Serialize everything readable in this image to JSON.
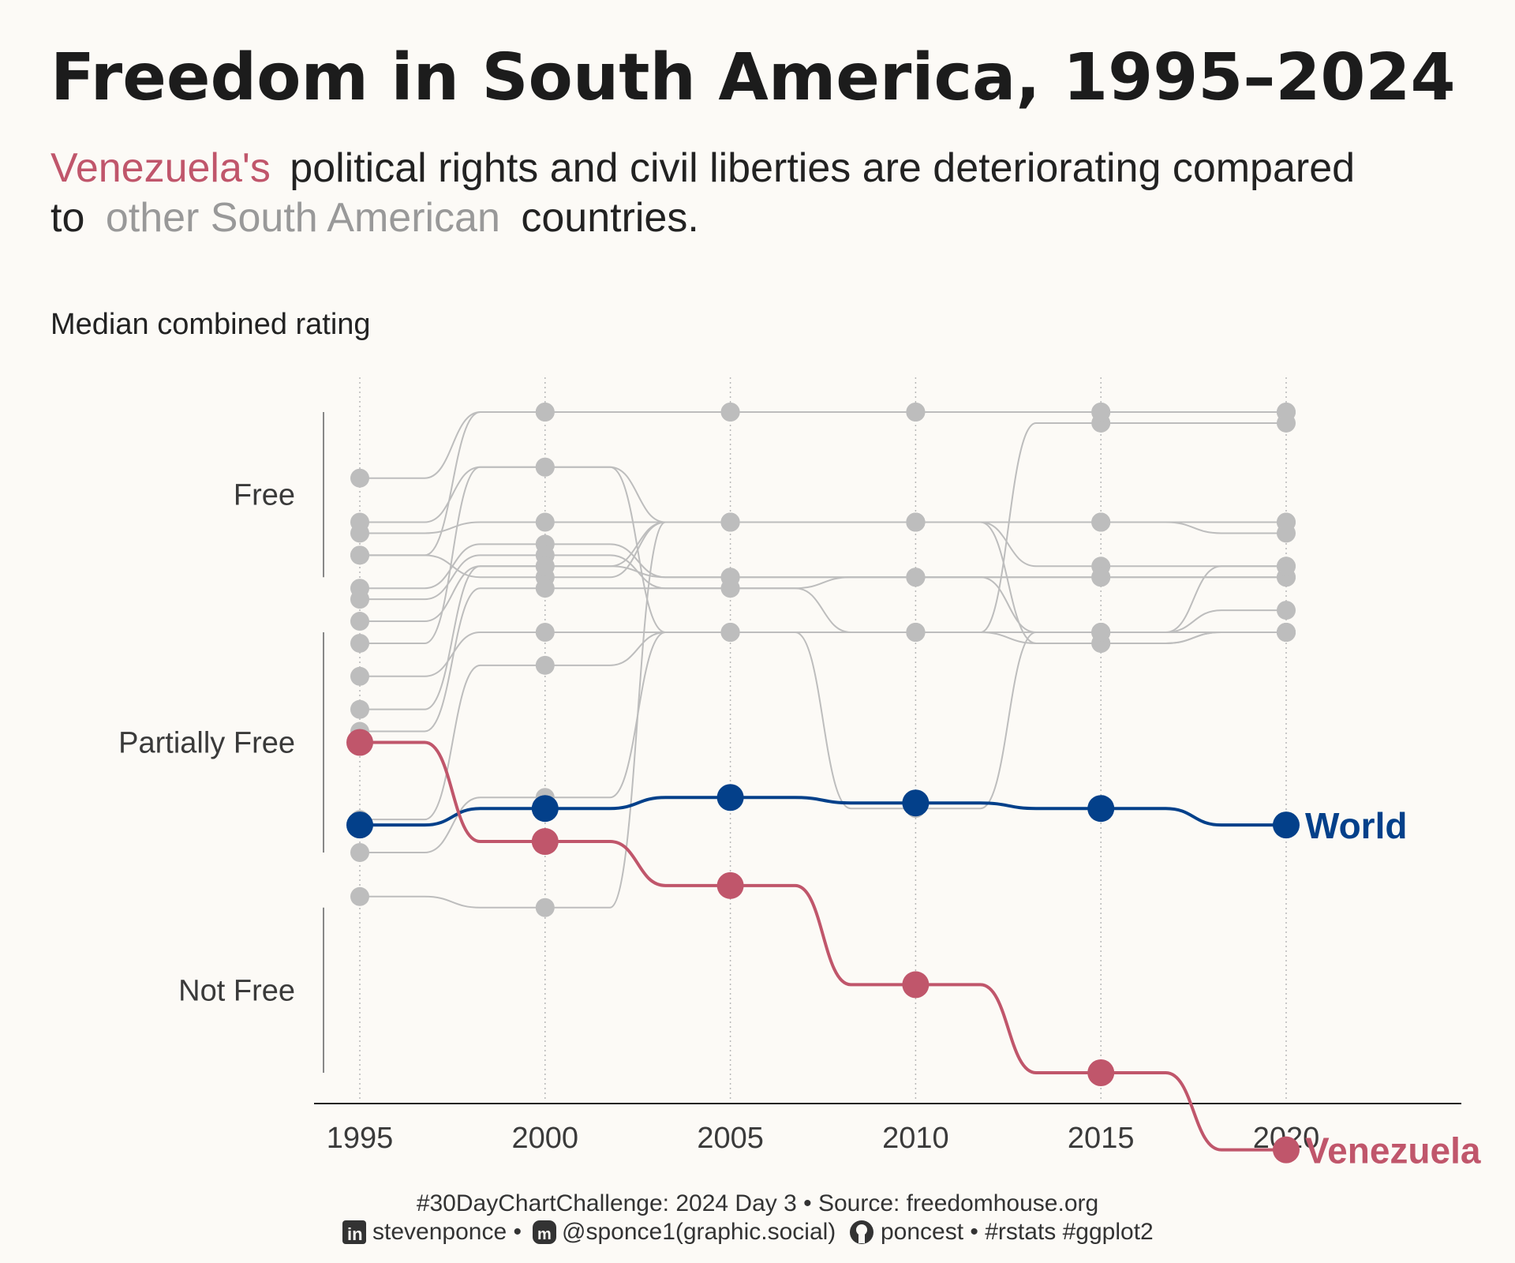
{
  "title": "Freedom in South America, 1995–2024",
  "subtitle": {
    "highlight": "Venezuela's",
    "part1": "political rights and civil liberties are deteriorating compared",
    "part2_prefix": "to",
    "grey_text": "other South American",
    "part2_suffix": "countries."
  },
  "caption": {
    "line1": "#30DayChartChallenge: 2024 Day 3 • Source: freedomhouse.org",
    "line2_parts": [
      "stevenponce •",
      "@sponce1(graphic.social)",
      "poncest • #rstats #ggplot2"
    ],
    "icons": [
      "linkedin-icon",
      "mastodon-icon",
      "github-icon"
    ]
  },
  "colors": {
    "background": "#fcfaf6",
    "venezuela": "#c0566b",
    "world": "#03408a",
    "others": "#bdbdbd",
    "subtitle_text": "#222222",
    "subtitle_grey": "#999999"
  },
  "chart_data": {
    "type": "line",
    "ylabel": "Median combined rating",
    "x": [
      1995,
      2000,
      2005,
      2010,
      2015,
      2020
    ],
    "xlim": [
      1994,
      2024
    ],
    "ylim": [
      0.5,
      14.5
    ],
    "y_categories": [
      {
        "label": "Free",
        "range": [
          1,
          2.5
        ]
      },
      {
        "label": "Partially Free",
        "range": [
          3,
          5
        ]
      },
      {
        "label": "Not Free",
        "range": [
          5.5,
          7
        ]
      }
    ],
    "highlight_series": [
      {
        "name": "World",
        "values": [
          4.75,
          4.6,
          4.5,
          4.55,
          4.6,
          4.75
        ],
        "color": "#03408a"
      },
      {
        "name": "Venezuela",
        "values": [
          4.0,
          4.9,
          5.3,
          6.2,
          7.0,
          7.7
        ],
        "color": "#c0566b"
      }
    ],
    "other_series": [
      {
        "values": [
          1.6,
          1.0,
          1.0,
          1.0,
          1.0,
          1.0
        ]
      },
      {
        "values": [
          2.0,
          1.5,
          2.0,
          2.0,
          2.0,
          2.0
        ]
      },
      {
        "values": [
          2.1,
          2.0,
          2.0,
          2.0,
          2.0,
          2.1
        ]
      },
      {
        "values": [
          2.3,
          2.5,
          2.0,
          2.0,
          2.4,
          2.4
        ]
      },
      {
        "values": [
          2.6,
          2.2,
          2.5,
          2.5,
          2.5,
          2.5
        ]
      },
      {
        "values": [
          2.7,
          2.3,
          2.6,
          2.5,
          2.5,
          2.5
        ]
      },
      {
        "values": [
          2.9,
          2.4,
          2.0,
          2.0,
          2.0,
          2.0
        ]
      },
      {
        "values": [
          3.1,
          1.5,
          3.0,
          3.0,
          3.0,
          2.8
        ]
      },
      {
        "values": [
          3.4,
          3.0,
          3.0,
          3.0,
          3.0,
          3.0
        ]
      },
      {
        "values": [
          4.7,
          3.3,
          3.0,
          3.0,
          3.1,
          3.0
        ]
      },
      {
        "values": [
          5.0,
          4.5,
          3.0,
          4.6,
          3.0,
          3.0
        ]
      },
      {
        "values": [
          5.4,
          5.5,
          2.0,
          2.0,
          3.1,
          3.0
        ]
      },
      {
        "values": [
          3.7,
          2.4,
          2.5,
          2.5,
          3.0,
          2.4
        ]
      },
      {
        "values": [
          3.9,
          2.6,
          2.6,
          3.0,
          1.1,
          1.1
        ]
      },
      {
        "values": [
          2.3,
          1.0,
          1.0,
          1.0,
          1.0,
          1.0
        ]
      }
    ]
  }
}
